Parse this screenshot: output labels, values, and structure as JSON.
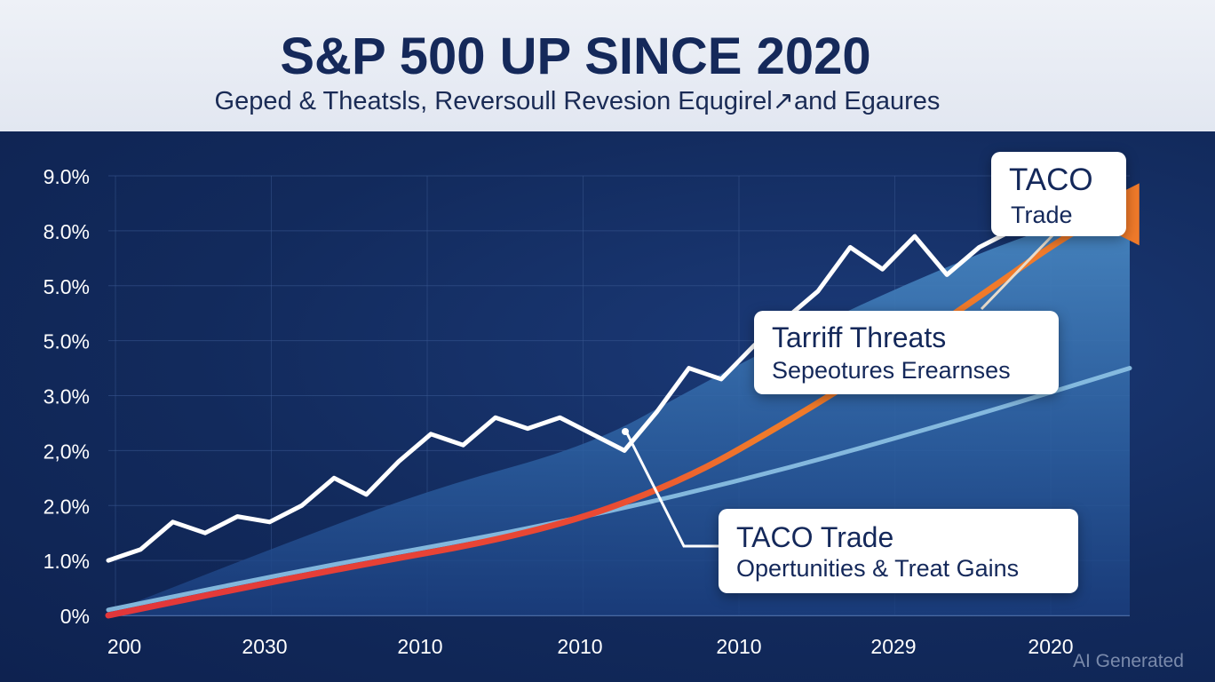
{
  "header": {
    "title": "S&P 500 UP SINCE 2020",
    "subtitle": "Geped & Theatsls, Reversoull Revesion Equgirel↗and Egaures"
  },
  "callouts": {
    "taco_top": {
      "head": "TACO",
      "body": "Trade"
    },
    "tariff": {
      "head": "Tarriff Threats",
      "body": "Sepeotures Erearnses"
    },
    "taco_bottom": {
      "head": "TACO Trade",
      "body": "Opertunities & Treat Gains"
    }
  },
  "watermark": "AI Generated",
  "colors": {
    "background": "#122a5c",
    "header_band": "#e6eaf3",
    "area_fill": "#3d7bb5",
    "index_line": "#ffffff",
    "trend_line_orange": "#f07a2a",
    "trend_line_red": "#e2363a",
    "baseline_curve": "#8ec3e6"
  },
  "chart_data": {
    "type": "line",
    "title": "S&P 500 UP SINCE 2020",
    "y_tick_labels": [
      "0%",
      "1.0%",
      "2.0%",
      "2,0%",
      "3.0%",
      "5.0%",
      "5.0%",
      "8.0%",
      "9.0%"
    ],
    "x_tick_labels": [
      "200",
      "2030",
      "2010",
      "2010",
      "2010",
      "2029",
      "2020"
    ],
    "grid": true,
    "ylim": [
      0,
      8
    ],
    "xlim": [
      0,
      9.5
    ],
    "series": [
      {
        "style": "jagged-white",
        "points": [
          [
            0,
            1.0
          ],
          [
            0.3,
            1.2
          ],
          [
            0.6,
            1.7
          ],
          [
            0.9,
            1.5
          ],
          [
            1.2,
            1.8
          ],
          [
            1.5,
            1.7
          ],
          [
            1.8,
            2.0
          ],
          [
            2.1,
            2.5
          ],
          [
            2.4,
            2.2
          ],
          [
            2.7,
            2.8
          ],
          [
            3.0,
            3.3
          ],
          [
            3.3,
            3.1
          ],
          [
            3.6,
            3.6
          ],
          [
            3.9,
            3.4
          ],
          [
            4.2,
            3.6
          ],
          [
            4.5,
            3.3
          ],
          [
            4.8,
            3.0
          ],
          [
            5.1,
            3.7
          ],
          [
            5.4,
            4.5
          ],
          [
            5.7,
            4.3
          ],
          [
            6.0,
            4.9
          ],
          [
            6.3,
            5.4
          ],
          [
            6.6,
            5.9
          ],
          [
            6.9,
            6.7
          ],
          [
            7.2,
            6.3
          ],
          [
            7.5,
            6.9
          ],
          [
            7.8,
            6.2
          ],
          [
            8.1,
            6.7
          ],
          [
            8.4,
            7.0
          ],
          [
            8.7,
            7.4
          ],
          [
            9.0,
            7.8
          ],
          [
            9.3,
            8.2
          ]
        ]
      },
      {
        "style": "area",
        "points": [
          [
            0,
            0.05
          ],
          [
            1.5,
            1.2
          ],
          [
            3.0,
            2.3
          ],
          [
            4.5,
            3.1
          ],
          [
            5.5,
            4.2
          ],
          [
            6.5,
            5.2
          ],
          [
            7.5,
            6.1
          ],
          [
            8.5,
            6.9
          ],
          [
            9.5,
            7.5
          ]
        ]
      },
      {
        "style": "orange-red-trend",
        "points": [
          [
            0,
            0.0
          ],
          [
            2.0,
            0.8
          ],
          [
            4.0,
            1.5
          ],
          [
            5.3,
            2.4
          ],
          [
            6.3,
            3.5
          ],
          [
            7.2,
            4.6
          ],
          [
            8.1,
            5.8
          ],
          [
            8.9,
            6.9
          ],
          [
            9.3,
            7.3
          ]
        ]
      },
      {
        "style": "light-blue-curve",
        "points": [
          [
            0,
            0.1
          ],
          [
            2.0,
            0.9
          ],
          [
            4.0,
            1.6
          ],
          [
            6.0,
            2.5
          ],
          [
            8.0,
            3.6
          ],
          [
            9.5,
            4.5
          ]
        ]
      }
    ]
  }
}
